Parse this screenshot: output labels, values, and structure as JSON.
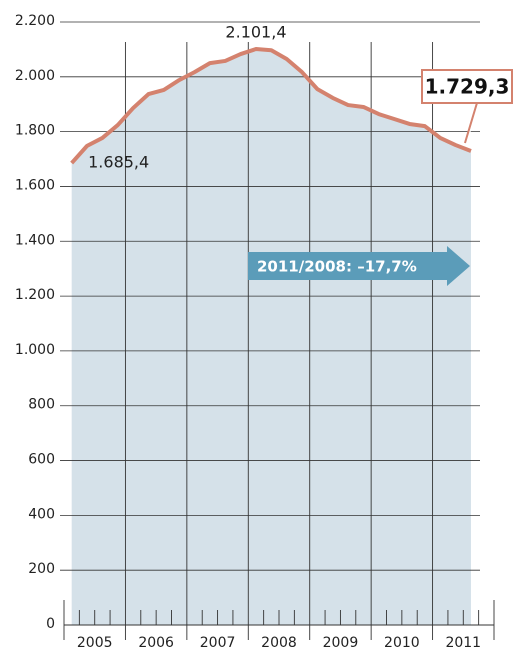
{
  "chart_data": {
    "type": "area",
    "x": [
      2005.125,
      2005.375,
      2005.625,
      2005.875,
      2006.125,
      2006.375,
      2006.625,
      2006.875,
      2007.125,
      2007.375,
      2007.625,
      2007.875,
      2008.125,
      2008.375,
      2008.625,
      2008.875,
      2009.125,
      2009.375,
      2009.625,
      2009.875,
      2010.125,
      2010.375,
      2010.625,
      2010.875,
      2011.125,
      2011.375,
      2011.625
    ],
    "values": [
      1685.4,
      1748,
      1777,
      1824,
      1886,
      1937,
      1952,
      1988,
      2017,
      2050,
      2058,
      2083,
      2101.4,
      2097,
      2065,
      2017,
      1955,
      1923,
      1897,
      1890,
      1864,
      1846,
      1828,
      1820,
      1777,
      1751,
      1729.3
    ],
    "value_labels": [
      "1.685,4",
      null,
      null,
      null,
      null,
      null,
      null,
      null,
      null,
      null,
      null,
      null,
      "2.101,4",
      null,
      null,
      null,
      null,
      null,
      null,
      null,
      null,
      null,
      null,
      null,
      null,
      null,
      "1.729,3"
    ],
    "color": "#d4826e",
    "fill_color": "#d5e1e9",
    "xlim": [
      2005,
      2012
    ],
    "xticks": [
      2005,
      2006,
      2007,
      2008,
      2009,
      2010,
      2011,
      2012
    ],
    "xminorticks": [
      2005.25,
      2005.5,
      2005.75,
      2006.25,
      2006.5,
      2006.75,
      2007.25,
      2007.5,
      2007.75,
      2008.25,
      2008.5,
      2008.75,
      2009.25,
      2009.5,
      2009.75,
      2010.25,
      2010.5,
      2010.75,
      2011.25,
      2011.5,
      2011.75
    ],
    "x_labels": [
      "2005",
      "2006",
      "2007",
      "2008",
      "2009",
      "2010",
      "2011"
    ],
    "ylim": [
      0,
      2200
    ],
    "yticks": [
      0,
      200,
      400,
      600,
      800,
      {
        "value": 1000,
        "label": "1.000"
      },
      {
        "value": 1200,
        "label": "1.200"
      },
      {
        "value": 1400,
        "label": "1.400"
      },
      {
        "value": 1600,
        "label": "1.600"
      },
      {
        "value": 1800,
        "label": "1.800"
      },
      {
        "value": 2000,
        "label": "2.000"
      },
      {
        "value": 2200,
        "label": "2.200"
      }
    ],
    "grid": true,
    "annotation": "2011/2008:  –17,7%",
    "annotation_color": "#5b9cb9"
  }
}
